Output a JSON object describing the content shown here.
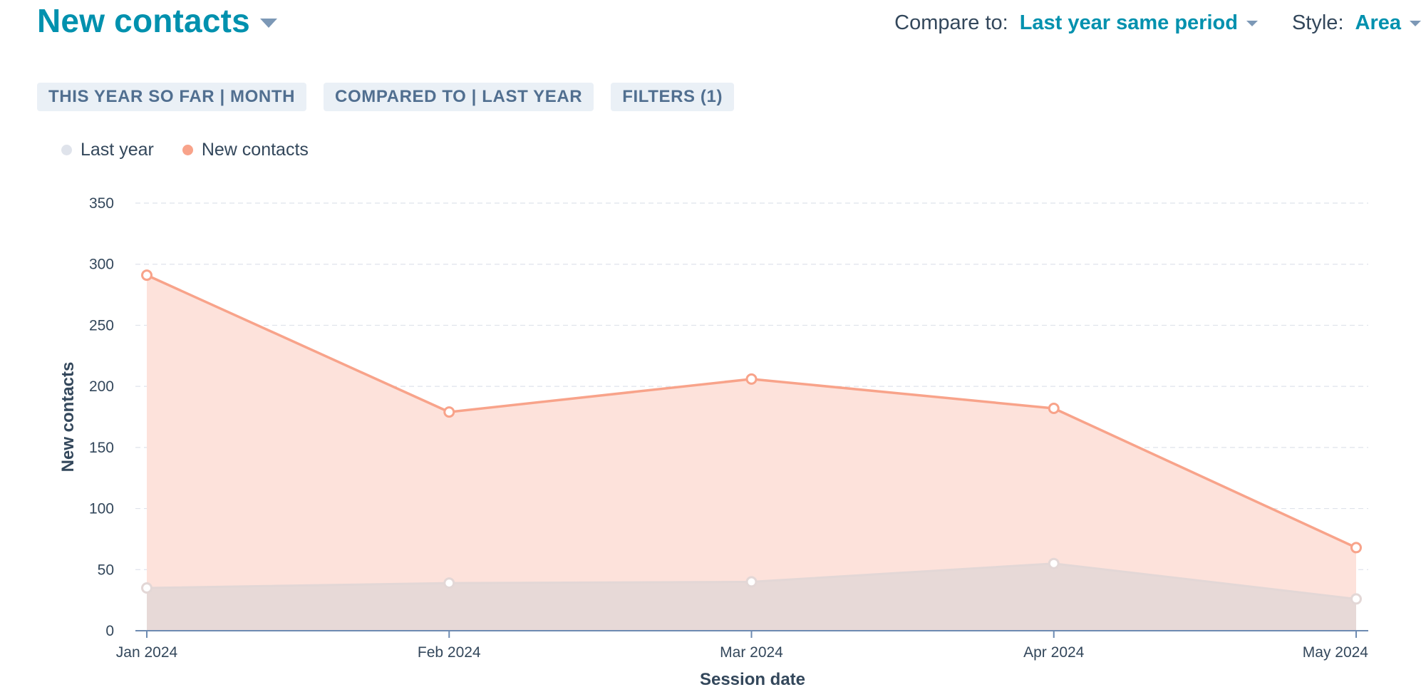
{
  "header": {
    "title": "New contacts",
    "compare_label": "Compare to:",
    "compare_value": "Last year same period",
    "style_label": "Style:",
    "style_value": "Area"
  },
  "chips": [
    "THIS YEAR SO FAR | MONTH",
    "COMPARED TO | LAST YEAR",
    "FILTERS (1)"
  ],
  "colors": {
    "accent": "#0091ae",
    "new_contacts": "#f8a38a",
    "new_contacts_fill": "#fde2db",
    "last_year": "#e3d7d6",
    "last_year_dot": "#dfe3eb",
    "grid": "#dfe3eb",
    "axis": "#6d8bb2"
  },
  "chart_data": {
    "type": "area",
    "title": "",
    "xlabel": "Session date",
    "ylabel": "New contacts",
    "categories": [
      "Jan 2024",
      "Feb 2024",
      "Mar 2024",
      "Apr 2024",
      "May 2024"
    ],
    "yticks": [
      "0",
      "50",
      "100",
      "150",
      "200",
      "250",
      "300",
      "350"
    ],
    "ylim": [
      0,
      350
    ],
    "grid": true,
    "legend_position": "top-left",
    "series": [
      {
        "name": "Last year",
        "values": [
          35,
          39,
          40,
          55,
          26
        ]
      },
      {
        "name": "New contacts",
        "values": [
          291,
          179,
          206,
          182,
          68
        ]
      }
    ]
  }
}
